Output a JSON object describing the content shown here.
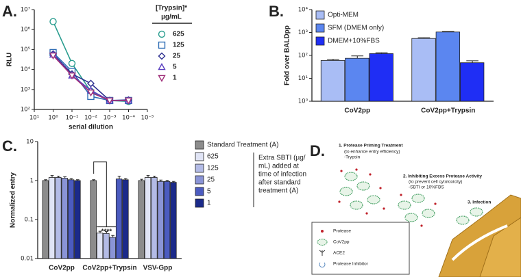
{
  "chart_data": [
    {
      "type": "line",
      "panel_label": "A.",
      "xlabel": "serial dilution",
      "ylabel": "RLU",
      "log_x": true,
      "log_y": true,
      "x": [
        1,
        0.1,
        0.01,
        0.001,
        0.0001
      ],
      "xlim": [
        10,
        1e-05
      ],
      "xticks": [
        {
          "value": 10,
          "label": "10¹"
        },
        {
          "value": 1,
          "label": "10⁰"
        },
        {
          "value": 0.1,
          "label": "10⁻¹"
        },
        {
          "value": 0.01,
          "label": "10⁻²"
        },
        {
          "value": 0.001,
          "label": "10⁻³"
        },
        {
          "value": 0.0001,
          "label": "10⁻⁴"
        },
        {
          "value": 1e-05,
          "label": "10⁻⁵"
        }
      ],
      "ylim": [
        100,
        10000000
      ],
      "yticks": [
        {
          "value": 100,
          "label": "10²"
        },
        {
          "value": 1000,
          "label": "10³"
        },
        {
          "value": 10000,
          "label": "10⁴"
        },
        {
          "value": 100000,
          "label": "10⁵"
        },
        {
          "value": 1000000,
          "label": "10⁶"
        },
        {
          "value": 10000000,
          "label": "10⁷"
        }
      ],
      "legend_title": [
        "[Trypsin]*",
        "µg/mL"
      ],
      "series": [
        {
          "name": "625",
          "color": "#2a9d8f",
          "marker": "circle",
          "values": [
            2500000,
            20000,
            800,
            280,
            250
          ]
        },
        {
          "name": "125",
          "color": "#2f6db5",
          "marker": "square",
          "values": [
            70000,
            8000,
            450,
            280,
            280
          ]
        },
        {
          "name": "25",
          "color": "#2b2f8f",
          "marker": "diamond",
          "values": [
            60000,
            6000,
            2000,
            280,
            300
          ]
        },
        {
          "name": "5",
          "color": "#5a3fc0",
          "marker": "triangle-up",
          "values": [
            55000,
            5000,
            900,
            280,
            280
          ]
        },
        {
          "name": "1",
          "color": "#a0307a",
          "marker": "triangle-down",
          "values": [
            50000,
            5000,
            700,
            280,
            280
          ]
        }
      ]
    },
    {
      "type": "bar",
      "panel_label": "B.",
      "ylabel": "Fold over BALDpp",
      "log_y": true,
      "legend": "upper left",
      "categories": [
        "CoV2pp",
        "CoV2pp+Trypsin"
      ],
      "ylim": [
        1,
        10000
      ],
      "yticks": [
        {
          "value": 1,
          "label": "10⁰"
        },
        {
          "value": 10,
          "label": "10¹"
        },
        {
          "value": 100,
          "label": "10²"
        },
        {
          "value": 1000,
          "label": "10³"
        },
        {
          "value": 10000,
          "label": "10⁴"
        }
      ],
      "series": [
        {
          "name": "Opti-MEM",
          "color": "#a9bdf5",
          "values": [
            60,
            550
          ],
          "errors": [
            8,
            40
          ]
        },
        {
          "name": "SFM (DMEM only)",
          "color": "#5b86f0",
          "values": [
            75,
            1050
          ],
          "errors": [
            20,
            60
          ]
        },
        {
          "name": "DMEM+10%FBS",
          "color": "#1f2ef5",
          "values": [
            120,
            48
          ],
          "errors": [
            10,
            10
          ]
        }
      ]
    },
    {
      "type": "bar",
      "panel_label": "C.",
      "ylabel": "Normalized entry",
      "log_y": true,
      "legend": "right",
      "categories": [
        "CoV2pp",
        "CoV2pp+Trypsin",
        "VSV-Gpp"
      ],
      "ylim": [
        0.01,
        10
      ],
      "yticks": [
        0.01,
        0.1,
        1,
        10
      ],
      "annotation": "****",
      "note": [
        "Extra SBTI (µg/",
        "mL) added at",
        "time of infection",
        "after standard",
        "treatment (A)"
      ],
      "series": [
        {
          "name": "Standard Treatment (A)",
          "color": "#8c8c8c",
          "values": [
            1.0,
            1.0,
            1.0
          ],
          "errors": [
            0.05,
            0.05,
            0.08
          ]
        },
        {
          "name": "625",
          "color": "#e0e4f5",
          "values": [
            1.2,
            0.045,
            1.2
          ],
          "errors": [
            0.15,
            0.005,
            0.15
          ]
        },
        {
          "name": "125",
          "color": "#b3bbe6",
          "values": [
            1.2,
            0.044,
            1.2
          ],
          "errors": [
            0.1,
            0.005,
            0.1
          ]
        },
        {
          "name": "25",
          "color": "#8a94d6",
          "values": [
            1.15,
            0.035,
            0.95
          ],
          "errors": [
            0.1,
            0.004,
            0.08
          ]
        },
        {
          "name": "5",
          "color": "#4b5bc0",
          "values": [
            1.05,
            1.1,
            0.95
          ],
          "errors": [
            0.08,
            0.2,
            0.06
          ]
        },
        {
          "name": "1",
          "color": "#1b2a8a",
          "values": [
            1.0,
            1.05,
            0.9
          ],
          "errors": [
            0.05,
            0.08,
            0.05
          ]
        }
      ]
    }
  ],
  "diagram": {
    "panel_label": "D.",
    "steps": [
      {
        "title": "1. Protease Priming Treatment",
        "lines": [
          "(to enhance entry efficiency)",
          "-Trypsin"
        ]
      },
      {
        "title": "2. Inhibiting Excess Protease Activity",
        "lines": [
          "(to prevent cell cytotoxicity)",
          "-SBTI or 10%FBS"
        ]
      },
      {
        "title": "3. Infection"
      }
    ],
    "legend": [
      "Protease",
      "CoV2pp",
      "ACE2",
      "Protease Inhibitor"
    ]
  }
}
